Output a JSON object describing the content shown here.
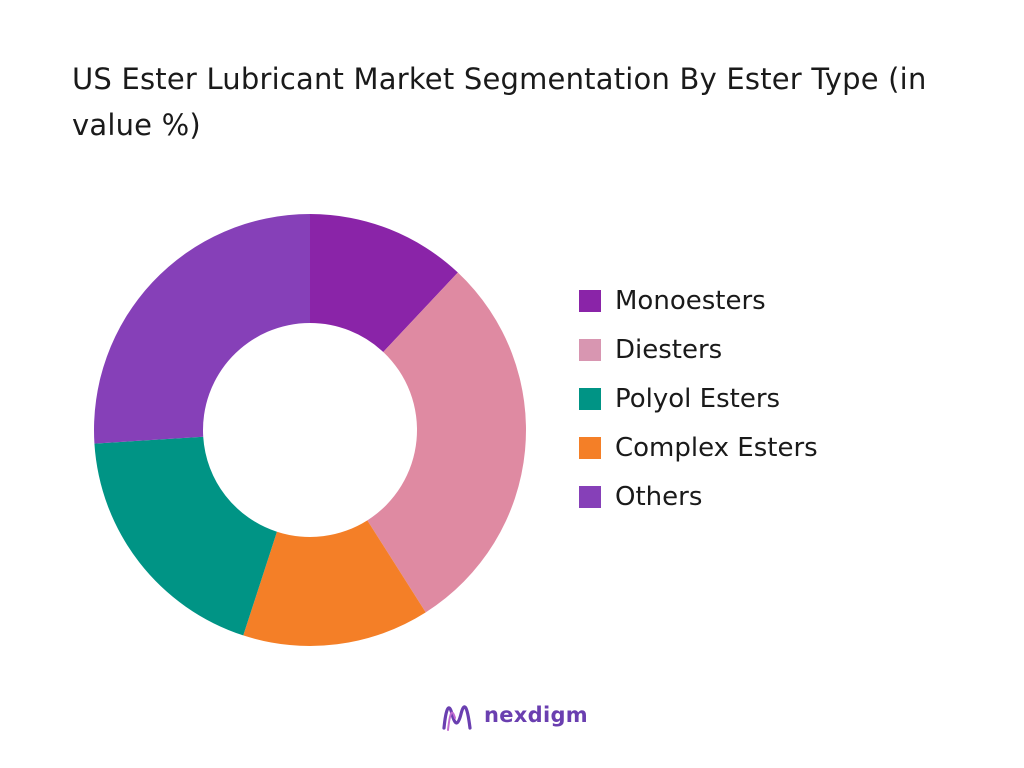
{
  "title": "US Ester Lubricant Market Segmentation By Ester Type (in value %)",
  "brand": {
    "name": "nexdigm",
    "logo_icon": "nexdigm-logo-icon"
  },
  "chart_data": {
    "type": "pie",
    "variant": "donut",
    "title": "US Ester Lubricant Market Segmentation By Ester Type (in value %)",
    "legend_position": "right",
    "categories": [
      "Monoesters",
      "Diesters",
      "Polyol Esters",
      "Complex Esters",
      "Others"
    ],
    "values": [
      12,
      29,
      19,
      14,
      26
    ],
    "colors": [
      "#8a24a8",
      "#df8aa2",
      "#009485",
      "#f47f27",
      "#8640b8"
    ],
    "legend_colors": [
      "#8a24a8",
      "#d896b1",
      "#009485",
      "#f47f27",
      "#8640b8"
    ],
    "slice_order_clockwise": [
      "Monoesters",
      "Diesters",
      "Complex Esters",
      "Polyol Esters",
      "Others"
    ]
  }
}
